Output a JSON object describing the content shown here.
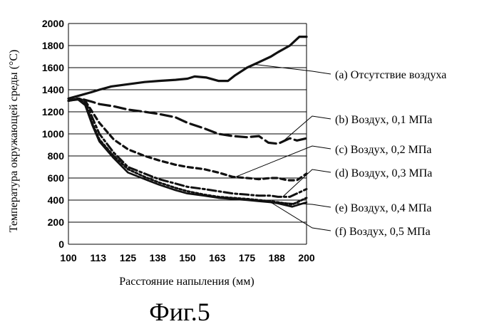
{
  "chart_data": {
    "type": "line",
    "title": "",
    "ylabel": "Температура окружающей среды (°С)",
    "xlabel": "Расстояние напыления (мм)",
    "caption": "Фиг.5",
    "xlim": [
      100,
      200
    ],
    "ylim": [
      0,
      2000
    ],
    "grid": "horizontal",
    "legend_placement": "right",
    "x_ticks": [
      "100",
      "113",
      "125",
      "138",
      "150",
      "163",
      "175",
      "188",
      "200"
    ],
    "y_ticks": [
      "0",
      "200",
      "400",
      "600",
      "800",
      "1000",
      "1200",
      "1400",
      "1600",
      "1800",
      "2000"
    ],
    "series": [
      {
        "name": "(a) Отсутствие воздуха",
        "style": "solid",
        "x": [
          100,
          105,
          110,
          113,
          118,
          125,
          132,
          138,
          145,
          150,
          153,
          158,
          163,
          167,
          170,
          175,
          180,
          185,
          188,
          193,
          197,
          200
        ],
        "y": [
          1320,
          1350,
          1380,
          1400,
          1430,
          1450,
          1470,
          1480,
          1490,
          1500,
          1520,
          1510,
          1480,
          1480,
          1530,
          1600,
          1650,
          1700,
          1740,
          1800,
          1880,
          1880
        ]
      },
      {
        "name": "(b) Воздух, 0,1 МПа",
        "style": "long-dash",
        "x": [
          100,
          105,
          110,
          113,
          119,
          125,
          132,
          138,
          145,
          150,
          157,
          163,
          169,
          175,
          180,
          184,
          188,
          193,
          196,
          200
        ],
        "y": [
          1300,
          1320,
          1290,
          1270,
          1250,
          1220,
          1200,
          1180,
          1150,
          1100,
          1050,
          1000,
          980,
          970,
          980,
          920,
          910,
          960,
          940,
          960
        ]
      },
      {
        "name": "(c) Воздух, 0,2 МПа",
        "style": "short-dash",
        "x": [
          100,
          104,
          107,
          110,
          113,
          119,
          125,
          132,
          138,
          145,
          150,
          157,
          163,
          169,
          175,
          180,
          185,
          188,
          192,
          196,
          200
        ],
        "y": [
          1300,
          1320,
          1300,
          1200,
          1100,
          950,
          860,
          800,
          760,
          720,
          700,
          680,
          650,
          610,
          600,
          590,
          600,
          600,
          580,
          580,
          640
        ]
      },
      {
        "name": "(d) Воздух, 0,3 МПа",
        "style": "dash-dot",
        "x": [
          100,
          104,
          107,
          110,
          113,
          119,
          125,
          132,
          138,
          145,
          150,
          157,
          163,
          169,
          175,
          180,
          185,
          188,
          193,
          200
        ],
        "y": [
          1300,
          1320,
          1300,
          1150,
          1000,
          830,
          700,
          640,
          590,
          550,
          520,
          500,
          480,
          460,
          450,
          440,
          440,
          430,
          430,
          500
        ]
      },
      {
        "name": "(e) Воздух, 0,4 МПа",
        "style": "dotted",
        "x": [
          100,
          104,
          107,
          110,
          113,
          119,
          125,
          132,
          138,
          145,
          150,
          157,
          163,
          169,
          175,
          180,
          185,
          188,
          194,
          200
        ],
        "y": [
          1300,
          1320,
          1280,
          1100,
          950,
          800,
          680,
          610,
          560,
          510,
          480,
          450,
          430,
          420,
          410,
          400,
          390,
          380,
          360,
          420
        ]
      },
      {
        "name": "(f) Воздух, 0,5 МПа",
        "style": "solid-thin",
        "x": [
          100,
          104,
          107,
          110,
          113,
          119,
          125,
          132,
          138,
          145,
          150,
          157,
          163,
          169,
          175,
          180,
          185,
          188,
          194,
          200
        ],
        "y": [
          1300,
          1310,
          1260,
          1080,
          930,
          780,
          650,
          590,
          540,
          490,
          460,
          440,
          420,
          410,
          400,
          390,
          380,
          370,
          340,
          380
        ]
      }
    ]
  }
}
